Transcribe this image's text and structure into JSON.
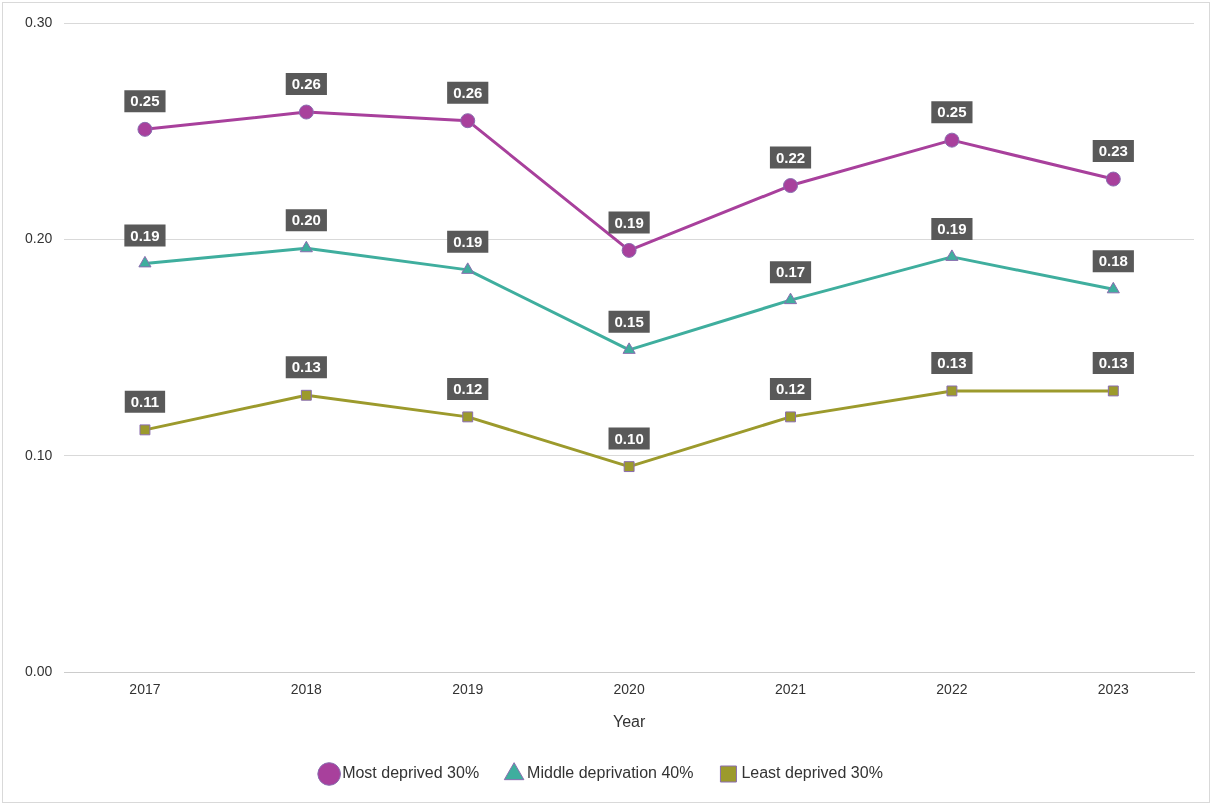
{
  "chart_data": {
    "type": "line",
    "xlabel": "Year",
    "categories": [
      "2017",
      "2018",
      "2019",
      "2020",
      "2021",
      "2022",
      "2023"
    ],
    "ylim": [
      0,
      0.3
    ],
    "yticks": [
      {
        "value": 0,
        "label": "0.00"
      },
      {
        "value": 0.1,
        "label": "0.10"
      },
      {
        "value": 0.2,
        "label": "0.20"
      },
      {
        "value": 0.3,
        "label": "0.30"
      }
    ],
    "grid": "y",
    "legend": "bottom",
    "line_style": "solid",
    "series": [
      {
        "name": "Most deprived 30%",
        "color": "#a8409c",
        "marker": "circle",
        "values": [
          0.251,
          0.259,
          0.255,
          0.195,
          0.225,
          0.246,
          0.228
        ],
        "value_labels": [
          "0.25",
          "0.26",
          "0.26",
          "0.19",
          "0.22",
          "0.25",
          "0.23"
        ]
      },
      {
        "name": "Middle deprivation 40%",
        "color": "#3fae9e",
        "marker": "triangle",
        "values": [
          0.189,
          0.196,
          0.186,
          0.149,
          0.172,
          0.192,
          0.177
        ],
        "value_labels": [
          "0.19",
          "0.20",
          "0.19",
          "0.15",
          "0.17",
          "0.19",
          "0.18"
        ]
      },
      {
        "name": "Least deprived 30%",
        "color": "#9c9a2c",
        "marker": "square",
        "values": [
          0.112,
          0.128,
          0.118,
          0.095,
          0.118,
          0.13,
          0.13
        ],
        "value_labels": [
          "0.11",
          "0.13",
          "0.12",
          "0.10",
          "0.12",
          "0.13",
          "0.13"
        ]
      }
    ]
  }
}
